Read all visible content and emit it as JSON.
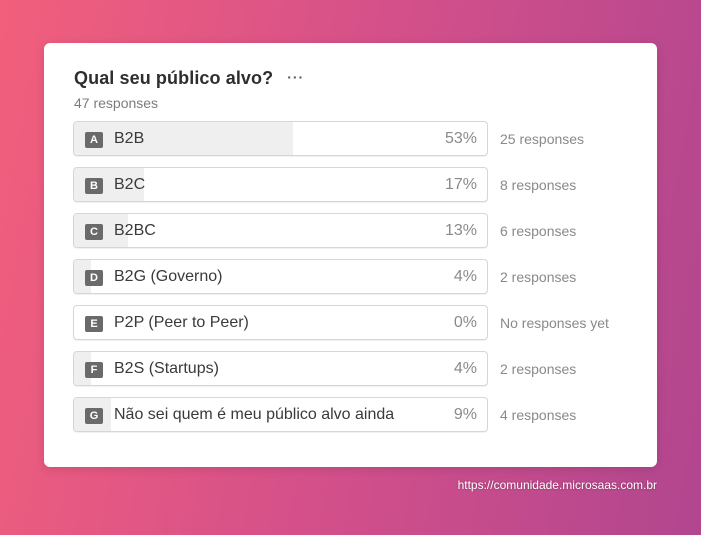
{
  "poll": {
    "title": "Qual seu público alvo?",
    "more_icon": "···",
    "total_responses": "47 responses",
    "options": [
      {
        "letter": "A",
        "label": "B2B",
        "percent": "53%",
        "fraction": 0.53,
        "responses": "25 responses"
      },
      {
        "letter": "B",
        "label": "B2C",
        "percent": "17%",
        "fraction": 0.17,
        "responses": "8 responses"
      },
      {
        "letter": "C",
        "label": "B2BC",
        "percent": "13%",
        "fraction": 0.13,
        "responses": "6 responses"
      },
      {
        "letter": "D",
        "label": "B2G (Governo)",
        "percent": "4%",
        "fraction": 0.04,
        "responses": "2 responses"
      },
      {
        "letter": "E",
        "label": "P2P (Peer to Peer)",
        "percent": "0%",
        "fraction": 0.0,
        "responses": "No responses yet"
      },
      {
        "letter": "F",
        "label": "B2S (Startups)",
        "percent": "4%",
        "fraction": 0.04,
        "responses": "2 responses"
      },
      {
        "letter": "G",
        "label": "Não sei quem é meu público alvo ainda",
        "percent": "9%",
        "fraction": 0.09,
        "responses": "4 responses"
      }
    ]
  },
  "watermark": "https://comunidade.microsaas.com.br",
  "colors": {
    "bar_fill": "#efefef",
    "letter_badge": "#6a6a6a",
    "background_start": "#f25f7c",
    "background_end": "#b1468f"
  }
}
